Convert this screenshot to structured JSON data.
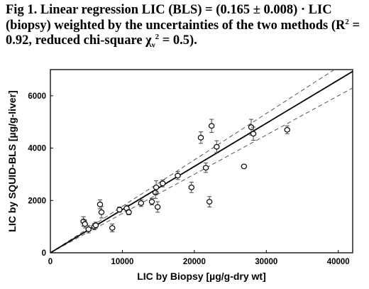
{
  "caption": {
    "part1": "Fig 1. Linear regression LIC (BLS) = (0.165 ± 0.008) · LIC (biopsy) weighted by the uncertainties of the two methods (R",
    "r2_sup": "2",
    "part2": " = 0.92, reduced chi-square χ",
    "chi_sub": "ν",
    "chi_sup": "2",
    "part3": " = 0.5)."
  },
  "chart_data": {
    "type": "scatter",
    "xlabel": "LIC by Biopsy [µg/g-dry wt]",
    "ylabel": "LIC by SQUID-BLS [µg/g-liver]",
    "xlim": [
      0,
      42000
    ],
    "ylim": [
      0,
      7000
    ],
    "xticks": [
      "0",
      "10000",
      "20000",
      "30000",
      "40000"
    ],
    "xtick_values": [
      0,
      10000,
      20000,
      30000,
      40000
    ],
    "yticks": [
      "0",
      "2000",
      "4000",
      "6000"
    ],
    "ytick_values": [
      0,
      2000,
      4000,
      6000
    ],
    "grid": false,
    "points": [
      {
        "x": 4600,
        "y": 1200,
        "err": 180
      },
      {
        "x": 4800,
        "y": 1100,
        "err": 150
      },
      {
        "x": 5300,
        "y": 900,
        "err": 140
      },
      {
        "x": 6100,
        "y": 1000,
        "err": 120
      },
      {
        "x": 6300,
        "y": 1050,
        "err": 120
      },
      {
        "x": 6900,
        "y": 1850,
        "err": 170
      },
      {
        "x": 7100,
        "y": 1550,
        "err": 220
      },
      {
        "x": 8600,
        "y": 950,
        "err": 150
      },
      {
        "x": 9600,
        "y": 1650,
        "err": 100
      },
      {
        "x": 10600,
        "y": 1700,
        "err": 120
      },
      {
        "x": 10900,
        "y": 1550,
        "err": 100
      },
      {
        "x": 12600,
        "y": 1900,
        "err": 130
      },
      {
        "x": 14100,
        "y": 1950,
        "err": 120
      },
      {
        "x": 14600,
        "y": 2300,
        "err": 220
      },
      {
        "x": 14700,
        "y": 2500,
        "err": 250
      },
      {
        "x": 14900,
        "y": 1750,
        "err": 200
      },
      {
        "x": 15600,
        "y": 2650,
        "err": 130
      },
      {
        "x": 17700,
        "y": 2950,
        "err": 150
      },
      {
        "x": 19600,
        "y": 2500,
        "err": 200
      },
      {
        "x": 20900,
        "y": 4400,
        "err": 220
      },
      {
        "x": 21600,
        "y": 3250,
        "err": 180
      },
      {
        "x": 22100,
        "y": 1950,
        "err": 200
      },
      {
        "x": 22400,
        "y": 4850,
        "err": 250
      },
      {
        "x": 23100,
        "y": 4050,
        "err": 230
      },
      {
        "x": 26900,
        "y": 3300,
        "err": 0
      },
      {
        "x": 27900,
        "y": 4800,
        "err": 300
      },
      {
        "x": 28200,
        "y": 4550,
        "err": 250
      },
      {
        "x": 32900,
        "y": 4700,
        "err": 150
      }
    ],
    "fit_line": {
      "x": [
        0,
        42000
      ],
      "y": [
        0,
        6930
      ]
    },
    "band_lines": [
      {
        "x": [
          0,
          42000
        ],
        "y": [
          0,
          7450
        ]
      },
      {
        "x": [
          0,
          42000
        ],
        "y": [
          0,
          6300
        ]
      }
    ]
  }
}
